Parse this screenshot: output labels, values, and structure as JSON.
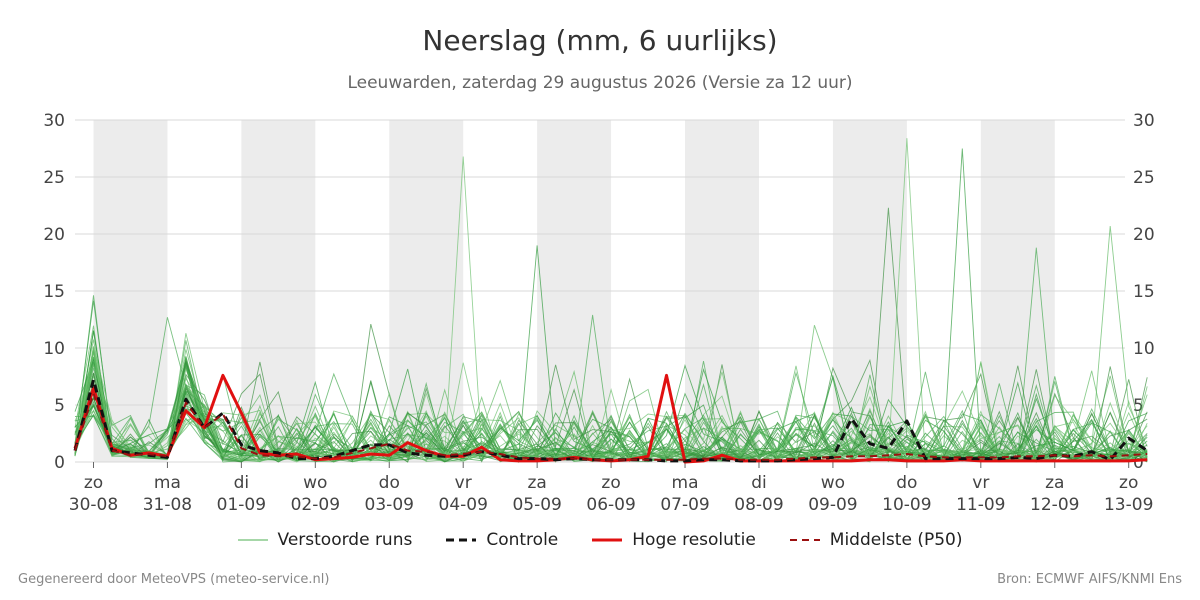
{
  "title": "Neerslag (mm, 6 uurlijks)",
  "subtitle": "Leeuwarden, zaterdag 29 augustus 2026 (Versie za 12 uur)",
  "footer": {
    "left": "Gegenereerd door MeteoVPS (meteo-service.nl)",
    "right": "Bron: ECMWF AIFS/KNMI Ens"
  },
  "legend": [
    {
      "label": "Verstoorde runs",
      "color": "#4caf50",
      "style": "thin"
    },
    {
      "label": "Controle",
      "color": "#111111",
      "style": "dashed"
    },
    {
      "label": "Hoge resolutie",
      "color": "#e01010",
      "style": "solid"
    },
    {
      "label": "Middelste (P50)",
      "color": "#9b1010",
      "style": "dashed-thin"
    }
  ],
  "chart_data": {
    "type": "line",
    "title": "Neerslag (mm, 6 uurlijks)",
    "ylim": [
      0,
      30
    ],
    "yticks": [
      0,
      5,
      10,
      15,
      20,
      25,
      30
    ],
    "grid": true,
    "legend_position": "bottom",
    "x_unit": "dagen vanaf 29-08 18u",
    "x_range": [
      0,
      14.2
    ],
    "day_labels": [
      {
        "day": "zo",
        "date": "30-08"
      },
      {
        "day": "ma",
        "date": "31-08"
      },
      {
        "day": "di",
        "date": "01-09"
      },
      {
        "day": "wo",
        "date": "02-09"
      },
      {
        "day": "do",
        "date": "03-09"
      },
      {
        "day": "vr",
        "date": "04-09"
      },
      {
        "day": "za",
        "date": "05-09"
      },
      {
        "day": "zo",
        "date": "06-09"
      },
      {
        "day": "ma",
        "date": "07-09"
      },
      {
        "day": "di",
        "date": "08-09"
      },
      {
        "day": "wo",
        "date": "09-09"
      },
      {
        "day": "do",
        "date": "10-09"
      },
      {
        "day": "vr",
        "date": "11-09"
      },
      {
        "day": "za",
        "date": "12-09"
      },
      {
        "day": "zo",
        "date": "13-09"
      }
    ],
    "weekend_shading": [
      [
        0.25,
        1.25
      ],
      [
        2.25,
        3.25
      ],
      [
        4.25,
        5.25
      ],
      [
        6.25,
        7.25
      ],
      [
        8.25,
        9.25
      ],
      [
        10.25,
        11.25
      ],
      [
        12.25,
        13.25
      ],
      [
        14.25,
        14.8
      ]
    ],
    "series": [
      {
        "name": "Hoge resolutie",
        "color": "#e01010",
        "style": "solid",
        "values": [
          1.2,
          6.5,
          1.2,
          0.6,
          0.8,
          0.5,
          4.5,
          3.0,
          7.6,
          4.3,
          0.8,
          0.6,
          0.7,
          0.2,
          0.3,
          0.4,
          0.7,
          0.6,
          1.7,
          1.0,
          0.5,
          0.5,
          1.3,
          0.2,
          0.1,
          0.1,
          0.2,
          0.4,
          0.2,
          0.1,
          0.2,
          0.5,
          7.6,
          0.0,
          0.1,
          0.6,
          0.1,
          0.1,
          0.1,
          0.1,
          0.1,
          0.1,
          0.1,
          0.2,
          0.2,
          0.1,
          0.1,
          0.1,
          0.2,
          0.1,
          0.1,
          0.1,
          0.1,
          0.1,
          0.1,
          0.1,
          0.1,
          0.1,
          0.2
        ]
      },
      {
        "name": "Controle",
        "color": "#111111",
        "style": "dashed",
        "values": [
          1.0,
          7.2,
          1.0,
          0.8,
          0.6,
          0.4,
          5.5,
          3.0,
          4.3,
          1.5,
          1.0,
          0.8,
          0.3,
          0.3,
          0.5,
          1.0,
          1.5,
          1.5,
          0.8,
          0.6,
          0.5,
          0.6,
          0.9,
          0.6,
          0.3,
          0.3,
          0.2,
          0.3,
          0.2,
          0.2,
          0.2,
          0.2,
          0.1,
          0.1,
          0.2,
          0.2,
          0.1,
          0.1,
          0.1,
          0.2,
          0.3,
          0.4,
          3.8,
          1.6,
          1.2,
          3.6,
          0.3,
          0.3,
          0.3,
          0.3,
          0.3,
          0.4,
          0.3,
          0.6,
          0.5,
          0.9,
          0.2,
          2.1,
          1.0
        ]
      },
      {
        "name": "Middelste (P50)",
        "color": "#9b1010",
        "style": "dashed-thin",
        "values": [
          1.0,
          6.0,
          1.0,
          0.6,
          0.7,
          0.5,
          5.2,
          3.0,
          4.2,
          1.2,
          0.6,
          0.5,
          0.5,
          0.3,
          0.4,
          0.8,
          1.2,
          1.6,
          1.0,
          0.9,
          0.6,
          0.7,
          0.9,
          0.7,
          0.4,
          0.3,
          0.3,
          0.3,
          0.2,
          0.2,
          0.2,
          0.2,
          0.2,
          0.2,
          0.3,
          0.3,
          0.2,
          0.2,
          0.2,
          0.3,
          0.4,
          0.4,
          0.5,
          0.5,
          0.6,
          0.7,
          0.5,
          0.4,
          0.4,
          0.4,
          0.4,
          0.5,
          0.5,
          0.6,
          0.5,
          0.6,
          0.5,
          0.6,
          0.7
        ]
      }
    ],
    "ensemble_members": 50,
    "ensemble_peaks": [
      {
        "x": 0.25,
        "y": 11.5
      },
      {
        "x": 1.25,
        "y": 12.7
      },
      {
        "x": 1.5,
        "y": 11.3
      },
      {
        "x": 4.0,
        "y": 12.1
      },
      {
        "x": 5.25,
        "y": 26.8
      },
      {
        "x": 6.25,
        "y": 19.0
      },
      {
        "x": 7.0,
        "y": 12.9
      },
      {
        "x": 10.0,
        "y": 12.0
      },
      {
        "x": 11.0,
        "y": 22.3
      },
      {
        "x": 11.25,
        "y": 28.4
      },
      {
        "x": 12.0,
        "y": 27.5
      },
      {
        "x": 13.0,
        "y": 18.8
      },
      {
        "x": 14.0,
        "y": 20.7
      }
    ]
  }
}
